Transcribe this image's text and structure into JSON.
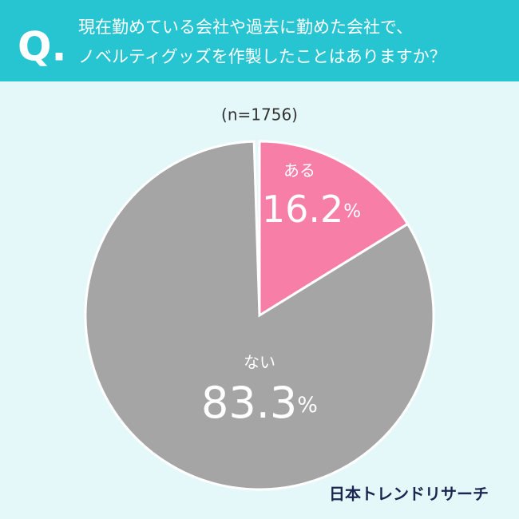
{
  "header": {
    "mark": "Q.",
    "title_lines": [
      "現在勤めている会社や過去に勤めた会社で、",
      "ノベルティグッズを作製したことはありますか？"
    ]
  },
  "chart_data": {
    "type": "pie",
    "subtitle": "(n=1756)",
    "categories": [
      "ある",
      "ない"
    ],
    "values": [
      16.2,
      83.3
    ],
    "unit": "%",
    "colors": [
      "#f77ea6",
      "#a5a5a5"
    ]
  },
  "footer": {
    "logo": "日本トレンドリサーチ"
  }
}
